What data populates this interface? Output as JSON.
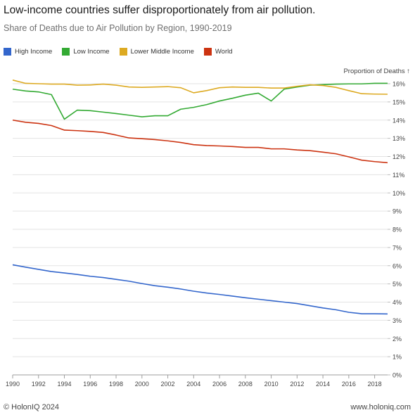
{
  "header": {
    "title": "Low-income countries suffer disproportionately from air pollution.",
    "subtitle": "Share of Deaths due to Air Pollution by Region, 1990-2019"
  },
  "footer": {
    "copyright": "© HolonIQ 2024",
    "website": "www.holoniq.com"
  },
  "chart_data": {
    "type": "line",
    "title": "Low-income countries suffer disproportionately from air pollution.",
    "subtitle": "Share of Deaths due to Air Pollution by Region, 1990-2019",
    "xlabel": "",
    "ylabel": "Proportion of Deaths ↑",
    "xlim": [
      1990,
      2019
    ],
    "ylim": [
      0,
      16
    ],
    "x_ticks": [
      1990,
      1992,
      1994,
      1996,
      1998,
      2000,
      2002,
      2004,
      2006,
      2008,
      2010,
      2012,
      2014,
      2016,
      2018
    ],
    "y_ticks": [
      "0%",
      "1%",
      "2%",
      "3%",
      "4%",
      "5%",
      "6%",
      "7%",
      "8%",
      "9%",
      "10%",
      "11%",
      "12%",
      "13%",
      "14%",
      "15%",
      "16%"
    ],
    "grid": true,
    "legend_position": "top-left",
    "x": [
      1990,
      1991,
      1992,
      1993,
      1994,
      1995,
      1996,
      1997,
      1998,
      1999,
      2000,
      2001,
      2002,
      2003,
      2004,
      2005,
      2006,
      2007,
      2008,
      2009,
      2010,
      2011,
      2012,
      2013,
      2014,
      2015,
      2016,
      2017,
      2018,
      2019
    ],
    "series": [
      {
        "name": "High Income",
        "color": "#3366cc",
        "values": [
          6.05,
          5.92,
          5.8,
          5.68,
          5.6,
          5.52,
          5.42,
          5.35,
          5.25,
          5.15,
          5.02,
          4.9,
          4.82,
          4.72,
          4.6,
          4.5,
          4.42,
          4.33,
          4.24,
          4.16,
          4.08,
          4.0,
          3.92,
          3.8,
          3.68,
          3.58,
          3.44,
          3.36,
          3.36,
          3.35
        ]
      },
      {
        "name": "Low Income",
        "color": "#33aa33",
        "values": [
          15.7,
          15.6,
          15.55,
          15.4,
          14.05,
          14.55,
          14.52,
          14.44,
          14.36,
          14.27,
          14.18,
          14.24,
          14.24,
          14.6,
          14.7,
          14.85,
          15.05,
          15.2,
          15.37,
          15.48,
          15.05,
          15.7,
          15.82,
          15.92,
          15.95,
          15.98,
          15.99,
          15.99,
          16.02,
          16.02
        ]
      },
      {
        "name": "Lower Middle Income",
        "color": "#ddaa22",
        "values": [
          16.2,
          16.02,
          16.0,
          15.98,
          15.98,
          15.92,
          15.93,
          15.98,
          15.92,
          15.82,
          15.8,
          15.82,
          15.84,
          15.78,
          15.5,
          15.62,
          15.78,
          15.82,
          15.8,
          15.8,
          15.76,
          15.76,
          15.86,
          15.94,
          15.9,
          15.8,
          15.62,
          15.45,
          15.43,
          15.42
        ]
      },
      {
        "name": "World",
        "color": "#cc3311",
        "values": [
          14.0,
          13.88,
          13.82,
          13.7,
          13.45,
          13.42,
          13.38,
          13.32,
          13.18,
          13.02,
          12.98,
          12.93,
          12.86,
          12.77,
          12.65,
          12.6,
          12.58,
          12.55,
          12.5,
          12.5,
          12.42,
          12.42,
          12.36,
          12.32,
          12.24,
          12.15,
          11.98,
          11.8,
          11.72,
          11.66
        ]
      }
    ]
  }
}
